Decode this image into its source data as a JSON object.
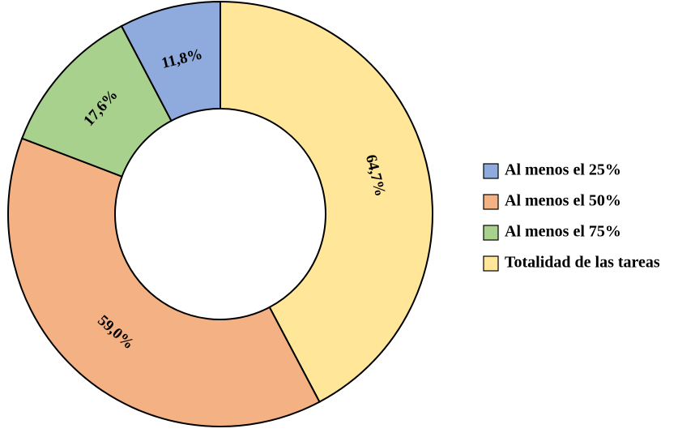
{
  "chart_data": {
    "type": "pie",
    "variant": "donut",
    "categories": [
      "Totalidad de las tareas",
      "Al menos el 50%",
      "Al menos el 75%",
      "Al menos el 25%"
    ],
    "values": [
      64.7,
      59.0,
      17.6,
      11.8
    ],
    "data_labels": [
      "64,7%",
      "59,0%",
      "17,6%",
      "11,8%"
    ],
    "colors": [
      "#FFE699",
      "#F4B183",
      "#A9D18E",
      "#8FAADC"
    ],
    "legend": {
      "placement": "right",
      "entries": [
        {
          "label": "Al menos el 25%",
          "color": "#8FAADC"
        },
        {
          "label": "Al menos el 50%",
          "color": "#F4B183"
        },
        {
          "label": "Al menos el 75%",
          "color": "#A9D18E"
        },
        {
          "label": "Totalidad de las tareas",
          "color": "#FFE699"
        }
      ]
    }
  }
}
